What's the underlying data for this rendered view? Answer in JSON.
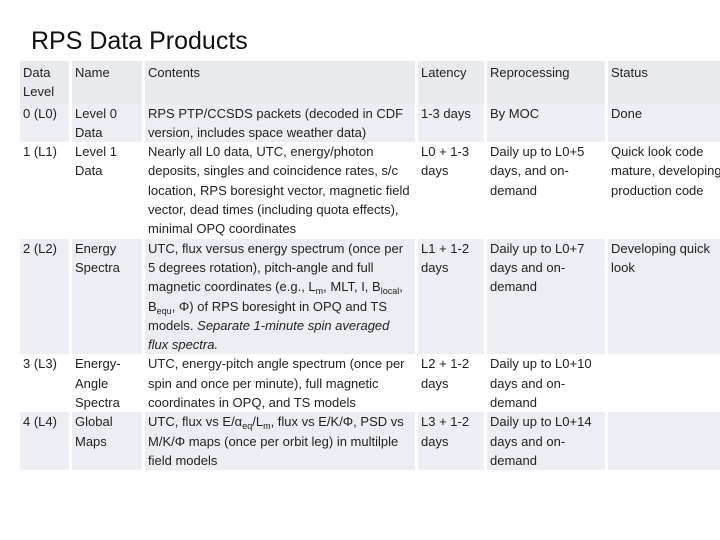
{
  "title": "RPS Data Products",
  "headers": {
    "level": "Data Level",
    "name": "Name",
    "contents": "Contents",
    "latency": "Latency",
    "reprocessing": "Reprocessing",
    "status": "Status"
  },
  "rows": [
    {
      "level": "0 (L0)",
      "name": "Level 0 Data",
      "contents": "RPS PTP/CCSDS packets (decoded in CDF version, includes space weather data)",
      "latency": "1-3 days",
      "reprocessing": "By MOC",
      "status": "Done"
    },
    {
      "level": "1 (L1)",
      "name": "Level 1 Data",
      "contents": "Nearly all L0 data, UTC, energy/photon deposits, singles and coincidence rates, s/c location, RPS boresight vector, magnetic field vector, dead times (including quota effects), minimal OPQ coordinates",
      "latency": "L0 + 1-3 days",
      "reprocessing": "Daily up to L0+5 days, and on-demand",
      "status": "Quick look code mature, developing production code"
    },
    {
      "level": "2 (L2)",
      "name": "Energy Spectra",
      "contents_a": "UTC,  flux versus energy spectrum (once per 5 degrees rotation), pitch-angle and full magnetic coordinates (e.g., L",
      "contents_sub_m": "m",
      "contents_b": ", MLT, I, B",
      "contents_sub_local": "local",
      "contents_c": ", B",
      "contents_sub_equ": "equ",
      "contents_d": ", Φ)  of RPS boresight in OPQ and TS models.",
      "contents_italic": "Separate 1-minute spin averaged flux spectra.",
      "latency": "L1 + 1-2 days",
      "reprocessing": "Daily up to L0+7 days and on-demand",
      "status": "Developing quick look"
    },
    {
      "level": "3 (L3)",
      "name": "Energy-Angle Spectra",
      "contents": "UTC, energy-pitch angle spectrum (once per spin and once per minute), full magnetic coordinates in OPQ, and TS models",
      "latency": "L2 + 1-2 days",
      "reprocessing": "Daily up to L0+10 days and on-demand",
      "status": ""
    },
    {
      "level": "4 (L4)",
      "name": "Global Maps",
      "contents_a": "UTC, flux vs E/α",
      "contents_sub_eq": "eq",
      "contents_b": "/L",
      "contents_sub_m": "m",
      "contents_c": ", flux vs E/K/Φ, PSD vs M/K/Φ maps (once per orbit leg) in multilple field models",
      "latency": "L3 + 1-2 days",
      "reprocessing": "Daily up to L0+14 days and on-demand",
      "status": ""
    }
  ]
}
